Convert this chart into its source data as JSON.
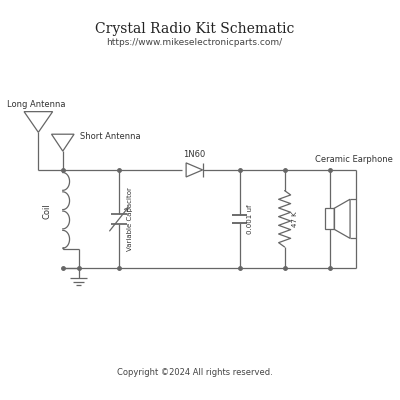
{
  "title": "Crystal Radio Kit Schematic",
  "subtitle": "https://www.mikeselectronicparts.com/",
  "copyright": "Copyright ©2024 All rights reserved.",
  "bg_color": "#ffffff",
  "line_color": "#666666",
  "title_fontsize": 10,
  "subtitle_fontsize": 6.5,
  "label_fontsize": 6,
  "copyright_fontsize": 6
}
